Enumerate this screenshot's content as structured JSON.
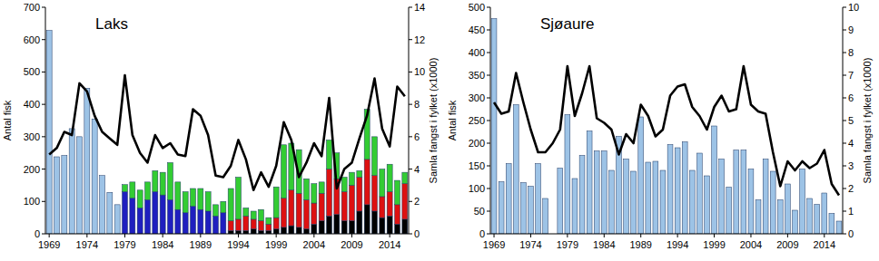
{
  "chart_data": [
    {
      "type": "bar",
      "title": "Laks",
      "y_label": "Antal fisk",
      "y2_label": "Samla fangst i fylket (x1000)",
      "stacked": true,
      "grid": false,
      "categories": [
        "1969",
        null,
        null,
        null,
        null,
        "1974",
        null,
        null,
        null,
        null,
        "1979",
        null,
        null,
        null,
        null,
        "1984",
        null,
        null,
        null,
        null,
        "1989",
        null,
        null,
        null,
        null,
        "1994",
        null,
        null,
        null,
        null,
        "1999",
        null,
        null,
        null,
        null,
        "2004",
        null,
        null,
        null,
        null,
        "2009",
        null,
        null,
        null,
        null,
        "2014",
        null,
        null
      ],
      "ylim": [
        0,
        700
      ],
      "yticks": [
        0,
        100,
        200,
        300,
        400,
        500,
        600,
        700
      ],
      "y2lim": [
        0,
        14
      ],
      "y2ticks": [
        0,
        2,
        4,
        6,
        8,
        10,
        12,
        14
      ],
      "series": [
        {
          "color": "#9dc3e6",
          "values": [
            628,
            238,
            242,
            325,
            300,
            450,
            355,
            180,
            128,
            90,
            null,
            null,
            null,
            null,
            null,
            null,
            null,
            null,
            null,
            null,
            null,
            null,
            null,
            null,
            null,
            null,
            null,
            null,
            null,
            null,
            null,
            null,
            null,
            null,
            null,
            null,
            null,
            null,
            null,
            null,
            null,
            null,
            null,
            null,
            null,
            null,
            null,
            null
          ]
        },
        {
          "color": "#000000",
          "values": [
            null,
            null,
            null,
            null,
            null,
            null,
            null,
            null,
            null,
            null,
            null,
            null,
            null,
            null,
            null,
            null,
            null,
            null,
            null,
            null,
            null,
            null,
            null,
            null,
            10,
            10,
            10,
            15,
            10,
            10,
            15,
            20,
            25,
            20,
            15,
            30,
            40,
            55,
            60,
            40,
            40,
            70,
            90,
            70,
            50,
            55,
            30,
            45
          ]
        },
        {
          "color": "#1f1fbf",
          "values": [
            null,
            null,
            null,
            null,
            null,
            null,
            null,
            null,
            null,
            null,
            130,
            110,
            80,
            105,
            130,
            120,
            105,
            75,
            65,
            85,
            75,
            70,
            55,
            65,
            null,
            null,
            null,
            null,
            null,
            null,
            null,
            null,
            null,
            null,
            null,
            null,
            null,
            null,
            null,
            null,
            null,
            null,
            null,
            null,
            null,
            null,
            null,
            null
          ]
        },
        {
          "color": "#dd1111",
          "values": [
            null,
            null,
            null,
            null,
            null,
            null,
            null,
            null,
            null,
            null,
            null,
            null,
            null,
            null,
            null,
            null,
            null,
            null,
            null,
            null,
            null,
            null,
            null,
            null,
            30,
            35,
            45,
            30,
            30,
            20,
            35,
            90,
            110,
            105,
            90,
            65,
            85,
            145,
            110,
            90,
            110,
            105,
            140,
            110,
            65,
            75,
            60,
            110
          ]
        },
        {
          "color": "#33cc33",
          "values": [
            null,
            null,
            null,
            null,
            null,
            null,
            null,
            null,
            null,
            null,
            22,
            50,
            55,
            55,
            65,
            70,
            115,
            85,
            65,
            55,
            65,
            60,
            35,
            35,
            100,
            130,
            25,
            25,
            35,
            20,
            95,
            165,
            145,
            135,
            65,
            60,
            35,
            90,
            80,
            45,
            40,
            20,
            155,
            120,
            85,
            85,
            75,
            35
          ]
        },
        {
          "type": "line",
          "axis": "y2",
          "color": "#000000",
          "values": [
            4.9,
            5.3,
            6.3,
            6.1,
            9.3,
            8.8,
            7.3,
            6.3,
            5.9,
            5.5,
            9.8,
            6.1,
            5.0,
            4.4,
            6.1,
            5.3,
            5.6,
            4.9,
            4.8,
            7.7,
            7.3,
            6.1,
            3.6,
            3.5,
            4.2,
            5.8,
            4.6,
            2.7,
            3.8,
            2.9,
            4.2,
            6.9,
            5.8,
            3.5,
            4.4,
            5.6,
            4.8,
            8.4,
            2.8,
            4.0,
            4.4,
            5.9,
            7.3,
            9.6,
            6.5,
            5.4,
            9.1,
            8.5
          ]
        }
      ]
    },
    {
      "type": "bar",
      "title": "Sjøaure",
      "y_label": "Antal fisk",
      "y2_label": "Samla fangst i fylket (x1000)",
      "grid": false,
      "categories": [
        "1969",
        null,
        null,
        null,
        null,
        "1974",
        null,
        null,
        null,
        null,
        "1979",
        null,
        null,
        null,
        null,
        "1984",
        null,
        null,
        null,
        null,
        "1989",
        null,
        null,
        null,
        null,
        "1994",
        null,
        null,
        null,
        null,
        "1999",
        null,
        null,
        null,
        null,
        "2004",
        null,
        null,
        null,
        null,
        "2009",
        null,
        null,
        null,
        null,
        "2014",
        null,
        null
      ],
      "ylim": [
        0,
        500
      ],
      "yticks": [
        0,
        50,
        100,
        150,
        200,
        250,
        300,
        350,
        400,
        450,
        500
      ],
      "y2lim": [
        0,
        10
      ],
      "y2ticks": [
        0,
        1,
        2,
        3,
        4,
        5,
        6,
        7,
        8,
        9,
        10
      ],
      "series": [
        {
          "color": "#9dc3e6",
          "values": [
            475,
            115,
            155,
            285,
            113,
            105,
            155,
            78,
            null,
            145,
            263,
            122,
            173,
            227,
            183,
            183,
            140,
            215,
            165,
            138,
            258,
            158,
            160,
            140,
            197,
            190,
            203,
            140,
            178,
            128,
            238,
            165,
            103,
            185,
            185,
            143,
            75,
            165,
            138,
            75,
            110,
            52,
            143,
            78,
            65,
            90,
            45,
            28
          ]
        },
        {
          "type": "line",
          "axis": "y2",
          "color": "#000000",
          "values": [
            5.8,
            5.3,
            5.4,
            7.1,
            5.8,
            4.6,
            3.6,
            3.6,
            4.0,
            4.6,
            7.4,
            5.2,
            6.2,
            7.4,
            5.1,
            4.9,
            4.6,
            3.5,
            4.4,
            4.0,
            5.7,
            5.2,
            4.3,
            4.6,
            6.1,
            6.5,
            6.6,
            5.6,
            5.2,
            4.6,
            5.6,
            6.1,
            5.4,
            5.5,
            7.4,
            5.7,
            5.4,
            5.3,
            3.6,
            2.1,
            3.2,
            2.8,
            3.2,
            2.9,
            3.1,
            3.7,
            2.2,
            1.7
          ]
        }
      ]
    }
  ]
}
